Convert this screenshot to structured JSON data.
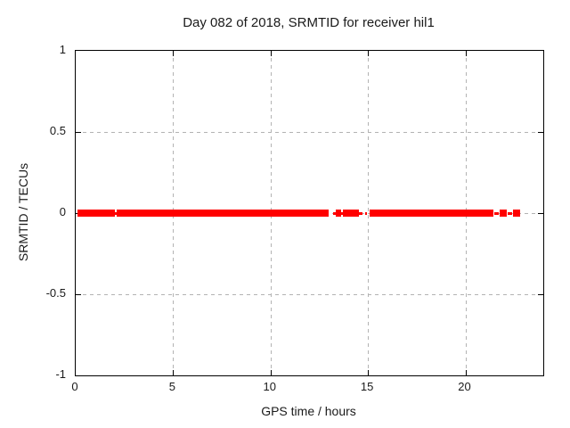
{
  "title": "Day 082 of 2018, SRMTID for receiver hil1",
  "axes": {
    "xlabel": "GPS time / hours",
    "ylabel": "SRMTID / TECUs"
  },
  "chart_data": {
    "type": "scatter",
    "title": "Day 082 of 2018, SRMTID for receiver hil1",
    "xlabel": "GPS time / hours",
    "ylabel": "SRMTID / TECUs",
    "xlim": [
      0,
      24
    ],
    "ylim": [
      -1,
      1
    ],
    "xticks": [
      0,
      5,
      10,
      15,
      20
    ],
    "xtick_labels": [
      "0",
      "5",
      "10",
      "15",
      "20"
    ],
    "yticks": [
      -1,
      -0.5,
      0,
      0.5,
      1
    ],
    "ytick_labels": [
      "-1",
      "-0.5",
      "0",
      "0.5",
      "1"
    ],
    "grid": true,
    "grid_x_values": [
      5,
      10,
      15,
      20
    ],
    "grid_y_values": [
      0.5,
      0,
      -0.5
    ],
    "legend": "none",
    "series": [
      {
        "name": "SRMTID",
        "marker": "filled-square",
        "color": "#ff0000",
        "y_value": 0,
        "segments_hours": [
          [
            0.09,
            2.01
          ],
          [
            2.1,
            12.98
          ],
          [
            13.35,
            13.62
          ],
          [
            13.71,
            14.54
          ],
          [
            15.09,
            21.44
          ],
          [
            21.76,
            22.13
          ],
          [
            22.45,
            22.81
          ]
        ],
        "sparse_marks_hours": [
          [
            1.97,
            2.15
          ],
          [
            13.21,
            13.35
          ],
          [
            13.62,
            13.71
          ],
          [
            14.54,
            14.72
          ],
          [
            14.86,
            14.95
          ],
          [
            21.49,
            21.71
          ],
          [
            22.17,
            22.4
          ]
        ]
      }
    ],
    "colors": {
      "data": "#ff0000",
      "grid": "#b3b3b3",
      "axis": "#000000",
      "text": "#1a1a1a",
      "background": "#ffffff"
    }
  }
}
